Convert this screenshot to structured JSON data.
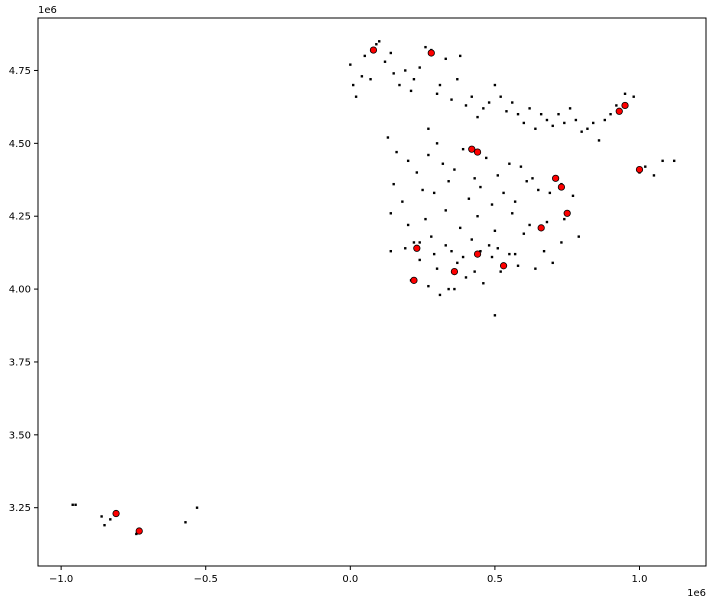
{
  "chart_data": {
    "type": "scatter",
    "title": "",
    "xlabel": "",
    "ylabel": "",
    "x_offset_label": "1e6",
    "y_offset_label": "1e6",
    "xlim": [
      -1.08,
      1.23
    ],
    "ylim": [
      3.05,
      4.93
    ],
    "x_ticks": [
      {
        "value": -1.0,
        "label": "−1.0"
      },
      {
        "value": -0.5,
        "label": "−0.5"
      },
      {
        "value": 0.0,
        "label": "0.0"
      },
      {
        "value": 0.5,
        "label": "0.5"
      },
      {
        "value": 1.0,
        "label": "1.0"
      }
    ],
    "y_ticks": [
      {
        "value": 3.25,
        "label": "3.25"
      },
      {
        "value": 3.5,
        "label": "3.50"
      },
      {
        "value": 3.75,
        "label": "3.75"
      },
      {
        "value": 4.0,
        "label": "4.00"
      },
      {
        "value": 4.25,
        "label": "4.25"
      },
      {
        "value": 4.5,
        "label": "4.50"
      },
      {
        "value": 4.75,
        "label": "4.75"
      }
    ],
    "grid": false,
    "legend": "none",
    "colors": {
      "point": "#000000",
      "highlight": "#ff0000",
      "axes": "#000000",
      "background": "#ffffff"
    },
    "series": [
      {
        "role": "points",
        "x": [
          -0.96,
          -0.95,
          -0.86,
          -0.85,
          -0.83,
          -0.74,
          -0.57,
          -0.53,
          0.0,
          0.01,
          0.02,
          0.04,
          0.05,
          0.07,
          0.09,
          0.1,
          0.12,
          0.14,
          0.15,
          0.17,
          0.19,
          0.21,
          0.22,
          0.24,
          0.26,
          0.28,
          0.3,
          0.31,
          0.33,
          0.35,
          0.37,
          0.38,
          0.4,
          0.42,
          0.44,
          0.46,
          0.48,
          0.5,
          0.52,
          0.54,
          0.56,
          0.58,
          0.6,
          0.62,
          0.64,
          0.66,
          0.68,
          0.7,
          0.72,
          0.74,
          0.76,
          0.78,
          0.8,
          0.82,
          0.84,
          0.86,
          0.88,
          0.9,
          0.92,
          0.95,
          0.98,
          1.0,
          1.02,
          1.05,
          1.08,
          1.12,
          0.13,
          0.16,
          0.2,
          0.23,
          0.27,
          0.32,
          0.36,
          0.39,
          0.43,
          0.47,
          0.51,
          0.55,
          0.59,
          0.63,
          0.15,
          0.18,
          0.25,
          0.29,
          0.34,
          0.41,
          0.45,
          0.49,
          0.53,
          0.57,
          0.61,
          0.65,
          0.69,
          0.73,
          0.77,
          0.14,
          0.2,
          0.26,
          0.33,
          0.38,
          0.44,
          0.5,
          0.56,
          0.62,
          0.68,
          0.74,
          0.22,
          0.28,
          0.35,
          0.42,
          0.48,
          0.55,
          0.6,
          0.67,
          0.73,
          0.79,
          0.24,
          0.3,
          0.37,
          0.43,
          0.49,
          0.58,
          0.64,
          0.7,
          0.21,
          0.27,
          0.34,
          0.4,
          0.46,
          0.52,
          0.31,
          0.36,
          0.5,
          0.27,
          0.3,
          0.14,
          0.19,
          0.24,
          0.29,
          0.33,
          0.39,
          0.45,
          0.51,
          0.57
        ],
        "y": [
          3.26,
          3.26,
          3.22,
          3.19,
          3.21,
          3.16,
          3.2,
          3.25,
          4.77,
          4.7,
          4.66,
          4.73,
          4.8,
          4.72,
          4.84,
          4.85,
          4.78,
          4.81,
          4.74,
          4.7,
          4.75,
          4.68,
          4.72,
          4.76,
          4.83,
          4.82,
          4.67,
          4.7,
          4.79,
          4.65,
          4.72,
          4.8,
          4.63,
          4.66,
          4.59,
          4.62,
          4.64,
          4.7,
          4.66,
          4.61,
          4.64,
          4.6,
          4.57,
          4.62,
          4.55,
          4.6,
          4.58,
          4.56,
          4.6,
          4.57,
          4.62,
          4.58,
          4.54,
          4.55,
          4.57,
          4.51,
          4.58,
          4.6,
          4.63,
          4.67,
          4.66,
          4.4,
          4.42,
          4.39,
          4.44,
          4.44,
          4.52,
          4.47,
          4.44,
          4.4,
          4.46,
          4.43,
          4.41,
          4.48,
          4.38,
          4.45,
          4.39,
          4.43,
          4.42,
          4.38,
          4.36,
          4.3,
          4.34,
          4.33,
          4.37,
          4.31,
          4.35,
          4.29,
          4.33,
          4.3,
          4.37,
          4.34,
          4.33,
          4.36,
          4.32,
          4.26,
          4.22,
          4.24,
          4.27,
          4.21,
          4.25,
          4.2,
          4.26,
          4.22,
          4.23,
          4.24,
          4.16,
          4.18,
          4.13,
          4.17,
          4.15,
          4.12,
          4.19,
          4.13,
          4.16,
          4.18,
          4.1,
          4.07,
          4.09,
          4.06,
          4.11,
          4.08,
          4.07,
          4.09,
          4.03,
          4.01,
          4.0,
          4.04,
          4.02,
          4.06,
          3.98,
          4.0,
          3.91,
          4.55,
          4.5,
          4.13,
          4.14,
          4.16,
          4.12,
          4.15,
          4.11,
          4.13,
          4.14,
          4.12
        ]
      },
      {
        "role": "highlighted-areas",
        "x": [
          0.08,
          0.28,
          0.42,
          0.44,
          0.66,
          0.71,
          0.73,
          0.93,
          0.95,
          1.0,
          0.23,
          0.36,
          0.44,
          0.53,
          0.22,
          0.75,
          -0.81,
          -0.73
        ],
        "y": [
          4.82,
          4.81,
          4.48,
          4.47,
          4.21,
          4.38,
          4.35,
          4.61,
          4.63,
          4.41,
          4.14,
          4.06,
          4.12,
          4.08,
          4.03,
          4.26,
          3.23,
          3.17
        ]
      }
    ]
  }
}
